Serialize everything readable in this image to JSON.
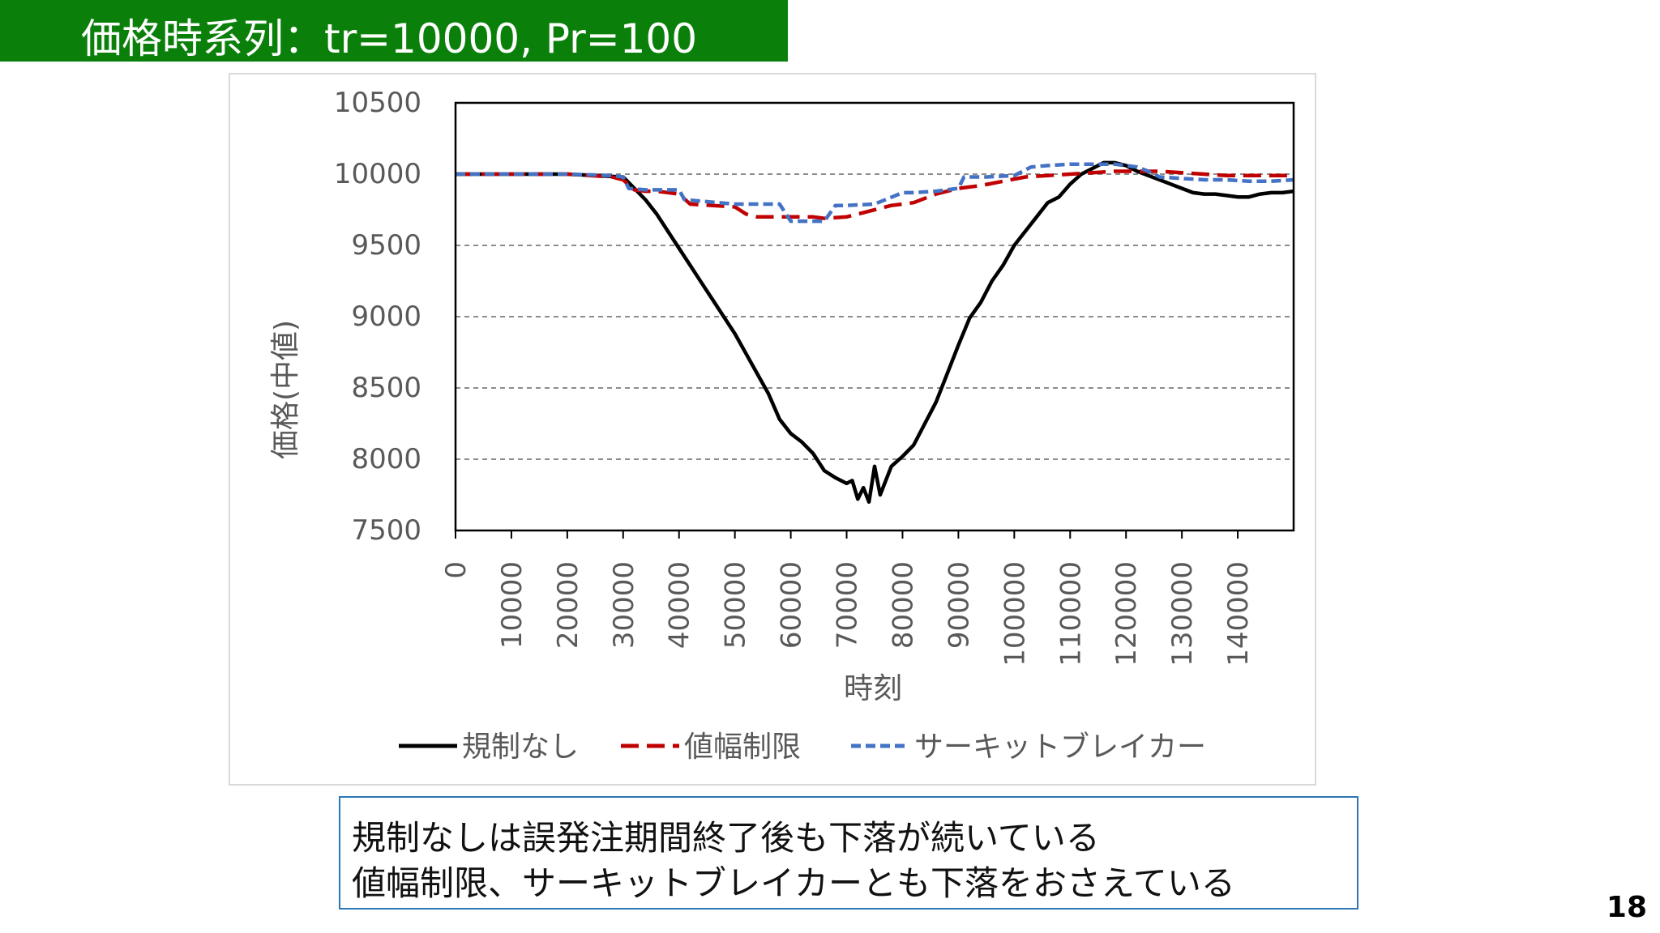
{
  "slide": {
    "title": "価格時系列：tr=10000, Pr=100",
    "notes": [
      "規制なしは誤発注期間終了後も下落が続いている",
      "値幅制限、サーキットブレイカーとも下落をおさえている"
    ],
    "page_number": "18"
  },
  "chart_data": {
    "type": "line",
    "xlabel": "時刻",
    "ylabel": "価格(中値)",
    "xlim": [
      0,
      150000
    ],
    "ylim": [
      7500,
      10500
    ],
    "x_ticks": [
      0,
      10000,
      20000,
      30000,
      40000,
      50000,
      60000,
      70000,
      80000,
      90000,
      100000,
      110000,
      120000,
      130000,
      140000
    ],
    "x_tick_labels": [
      "0",
      "10000",
      "20000",
      "30000",
      "40000",
      "50000",
      "60000",
      "70000",
      "80000",
      "90000",
      "100000",
      "110000",
      "120000",
      "130000",
      "140000"
    ],
    "y_ticks": [
      7500,
      8000,
      8500,
      9000,
      9500,
      10000,
      10500
    ],
    "y_tick_labels": [
      "7500",
      "8000",
      "8500",
      "9000",
      "9500",
      "10000",
      "10500"
    ],
    "grid": "horizontal-dashed",
    "legend_position": "bottom",
    "series": [
      {
        "name": "規制なし",
        "color": "#000000",
        "style": "solid",
        "x": [
          0,
          5000,
          10000,
          15000,
          20000,
          25000,
          30000,
          32000,
          34000,
          36000,
          38000,
          40000,
          42000,
          44000,
          46000,
          48000,
          50000,
          52000,
          54000,
          56000,
          58000,
          60000,
          62000,
          64000,
          66000,
          68000,
          70000,
          71000,
          72000,
          73000,
          74000,
          75000,
          76000,
          78000,
          80000,
          82000,
          84000,
          86000,
          88000,
          90000,
          92000,
          94000,
          96000,
          98000,
          100000,
          102000,
          104000,
          106000,
          108000,
          110000,
          112000,
          114000,
          116000,
          118000,
          120000,
          122000,
          124000,
          126000,
          128000,
          130000,
          132000,
          134000,
          136000,
          138000,
          140000,
          142000,
          144000,
          146000,
          148000,
          150000
        ],
        "y": [
          10000,
          10000,
          10000,
          10000,
          10000,
          9990,
          9980,
          9900,
          9820,
          9720,
          9600,
          9480,
          9360,
          9240,
          9120,
          9000,
          8880,
          8740,
          8600,
          8460,
          8280,
          8180,
          8120,
          8040,
          7920,
          7870,
          7830,
          7850,
          7720,
          7800,
          7700,
          7950,
          7750,
          7950,
          8020,
          8100,
          8250,
          8400,
          8600,
          8800,
          8990,
          9100,
          9250,
          9360,
          9500,
          9600,
          9700,
          9800,
          9840,
          9930,
          10000,
          10040,
          10080,
          10080,
          10060,
          10020,
          9990,
          9960,
          9930,
          9900,
          9870,
          9860,
          9860,
          9850,
          9840,
          9840,
          9860,
          9870,
          9870,
          9880
        ]
      },
      {
        "name": "値幅制限",
        "color": "#c00000",
        "style": "dash",
        "x": [
          0,
          10000,
          20000,
          28000,
          30000,
          32000,
          34000,
          36000,
          40000,
          42000,
          46000,
          50000,
          52000,
          54000,
          56000,
          60000,
          64000,
          66000,
          70000,
          74000,
          78000,
          82000,
          86000,
          90000,
          94000,
          98000,
          102000,
          106000,
          110000,
          114000,
          118000,
          122000,
          126000,
          130000,
          134000,
          138000,
          142000,
          146000,
          150000
        ],
        "y": [
          10000,
          10000,
          10000,
          9980,
          9960,
          9890,
          9880,
          9880,
          9860,
          9790,
          9780,
          9770,
          9720,
          9700,
          9700,
          9700,
          9700,
          9690,
          9700,
          9740,
          9780,
          9800,
          9860,
          9900,
          9920,
          9950,
          9980,
          9990,
          10000,
          10010,
          10020,
          10020,
          10020,
          10010,
          10000,
          9990,
          9990,
          9990,
          9990
        ]
      },
      {
        "name": "サーキットブレイカー",
        "color": "#4472c4",
        "style": "dash",
        "x": [
          0,
          10000,
          20000,
          28000,
          30000,
          31000,
          34000,
          40000,
          41000,
          44000,
          47000,
          50000,
          52000,
          55000,
          58000,
          60000,
          63000,
          65000,
          66000,
          68000,
          70000,
          75000,
          80000,
          82000,
          86000,
          90000,
          91000,
          95000,
          100000,
          103000,
          106000,
          110000,
          114000,
          118000,
          122000,
          124000,
          126000,
          130000,
          134000,
          138000,
          142000,
          146000,
          150000
        ],
        "y": [
          10000,
          10000,
          10000,
          9990,
          9980,
          9900,
          9890,
          9890,
          9820,
          9810,
          9800,
          9790,
          9790,
          9790,
          9790,
          9670,
          9670,
          9670,
          9670,
          9780,
          9780,
          9790,
          9870,
          9870,
          9880,
          9900,
          9980,
          9980,
          9990,
          10050,
          10060,
          10070,
          10070,
          10070,
          10050,
          10020,
          9980,
          9970,
          9960,
          9960,
          9950,
          9950,
          9960
        ]
      }
    ]
  }
}
